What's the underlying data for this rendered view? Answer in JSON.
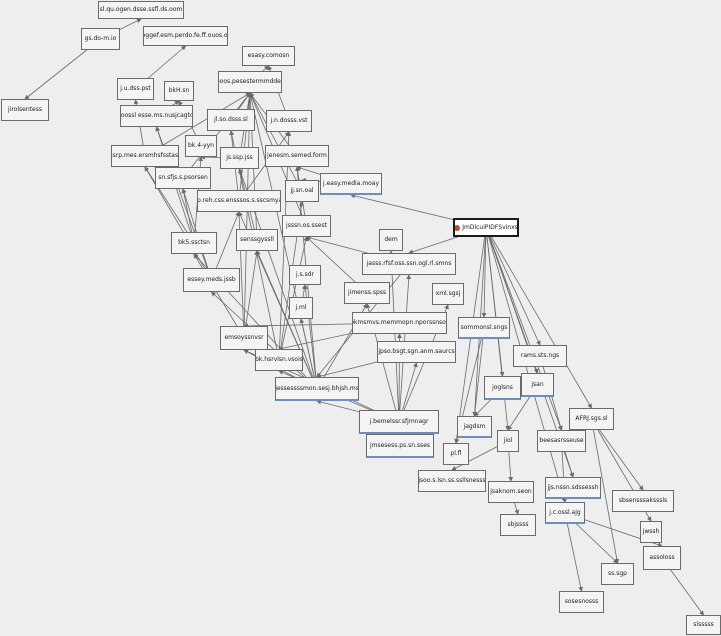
{
  "root": {
    "label": "JmDlcuiPIDFSvinxs"
  },
  "colors": {
    "edge": "#6a6a6a",
    "node_border": "#6a6a6a",
    "accent": "#6f8fb8",
    "background": "#eeeeee"
  },
  "nodes": {
    "n01": "sl.qu.ogen.dsse.ssfl.ds.oom",
    "n02": "gs.do-m.io",
    "n03": "joggef.esm.perdo.fe.ff.ouos.oc",
    "n04": "jirolsentess",
    "n05": "esasy.comosn",
    "n06": "j.u.dss.pst",
    "n07": "bkH.sn",
    "n08": "ooos.pesestermmddes",
    "n09": "poossl esse.ms.nusjcagtot",
    "n10": "jl.so.dsss.sl",
    "n11": "j.n.dosss.vst",
    "n12": "ssrp.mes.ersmhsfsstast",
    "n13": "bk.4-yyn",
    "n14": "js.ssp.jss",
    "n15": "jenesm.semed.form",
    "n16": "sn.sfjs.s.psorsen",
    "n17": "jj.sn.oal",
    "n18": "j.easy.media.moay",
    "n19": "jsp.reh.css.ensssos.s.sscsmyay",
    "n20": "bk5.ssctsn",
    "n21": "senssgyssll",
    "n22": "jsssn.os.ssest",
    "n23": "dem",
    "n24": "jasss.rfsf.oss.ssn.ogl.rl.smns",
    "n25": "j.s.sdr",
    "n26": "essey.meds.jssb",
    "n27": "jimenss.spss",
    "n28": "xml.sgsj",
    "n29": "j.ml",
    "n30": "bkmsmvs.memmopn.nporssnsos",
    "n31": "sornmonsl.sngs",
    "n32": "emsoyssnvsr",
    "n33": "jpso.bsgt.sgn.anm.saurcs",
    "n34": "bk.hsrvlsn.vsois",
    "n35": "rams.sts.ngs",
    "n36": "jessessssmon.sesj.bhjsh.ms",
    "n37": "jsan",
    "n38": "joglsns",
    "n39": "j.bemelssr.sfjmnagr",
    "n40": "jagdsm",
    "n41": "AFRJ.sgs.sl",
    "n42": "jmsesess.ps.sn.sses",
    "n43": "jiol",
    "n44": "beesasrsseuse",
    "n45": "pl.fl",
    "n46": "jsoo.s.lsn.ss.ssllsnesss",
    "n47": "jsaknom.seon",
    "n48": "jjs.nssn.sdssessh",
    "n49": "sbsensssaksssls",
    "n50": "j.c.ossl.ajg",
    "n51": "jwssh",
    "n52": "sbjssss",
    "n53": "assoloss",
    "n54": "ss.sgp",
    "n55": "sosesnosss",
    "n56": "slsssss"
  }
}
